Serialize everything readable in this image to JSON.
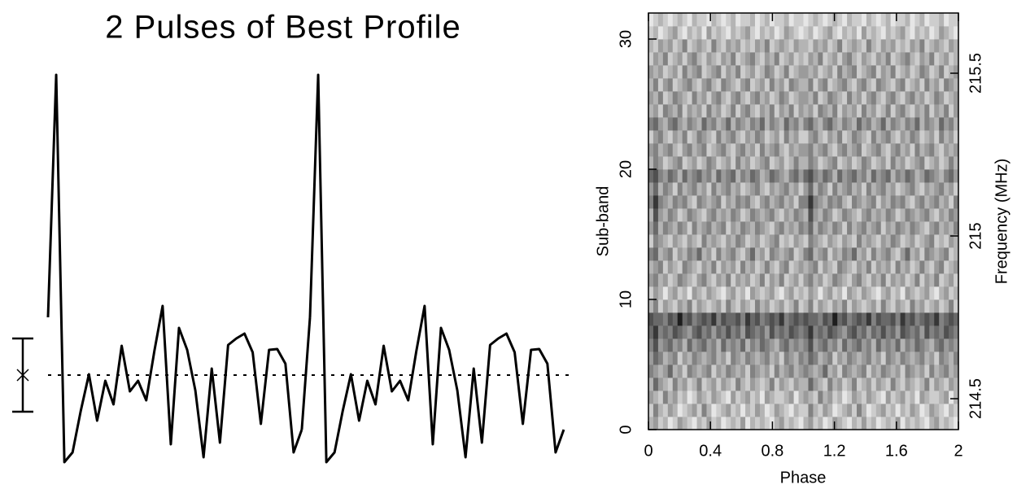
{
  "chart_data": [
    {
      "type": "line",
      "title": "2 Pulses of Best Profile",
      "color": "#000000",
      "values": [
        7.1,
        36.9,
        -10.7,
        -9.5,
        -4.4,
        0.1,
        -5.6,
        -0.7,
        -3.6,
        3.6,
        -2.0,
        -0.7,
        -3.1,
        3.0,
        8.5,
        -8.5,
        5.8,
        3.1,
        -1.9,
        -10.1,
        0.8,
        -8.3,
        3.7,
        4.5,
        5.1,
        2.8,
        -6.0,
        3.1,
        3.2,
        1.4,
        -9.5,
        -6.7
      ],
      "mean": 0,
      "error": 4.5,
      "xlim": [
        0,
        2
      ],
      "ylim": [
        -12,
        40
      ]
    },
    {
      "type": "heatmap",
      "xlabel": "Phase",
      "ylabel": "Sub-band",
      "y2label": "Frequency (MHz)",
      "xlim": [
        0,
        2
      ],
      "xticks": [
        0,
        0.4,
        0.8,
        1.2,
        1.6,
        2
      ],
      "ylim": [
        0,
        32
      ],
      "yticks": [
        0,
        10,
        20,
        30
      ],
      "y2lim": [
        214.405,
        215.685
      ],
      "y2ticks": [
        214.5,
        215,
        215.5
      ],
      "z": [
        [
          3,
          4,
          2,
          3,
          1,
          2,
          4,
          3,
          2,
          1,
          3,
          2,
          4,
          2,
          3,
          1,
          2,
          3,
          2,
          4,
          1,
          3,
          2,
          3,
          2,
          1,
          3,
          4,
          2,
          3,
          2,
          1
        ],
        [
          2,
          5,
          3,
          2,
          4,
          3,
          1,
          2,
          3,
          4,
          2,
          5,
          3,
          1,
          2,
          3,
          4,
          2,
          3,
          1,
          3,
          2,
          4,
          3,
          1,
          2,
          4,
          3,
          2,
          1,
          3,
          2
        ],
        [
          4,
          3,
          2,
          5,
          3,
          4,
          2,
          3,
          1,
          2,
          4,
          3,
          2,
          4,
          3,
          2,
          1,
          4,
          2,
          3,
          4,
          2,
          3,
          1,
          4,
          3,
          2,
          2,
          3,
          4,
          1,
          3
        ],
        [
          3,
          6,
          4,
          3,
          2,
          5,
          3,
          4,
          2,
          3,
          5,
          2,
          3,
          4,
          2,
          4,
          3,
          2,
          5,
          3,
          2,
          4,
          3,
          2,
          3,
          5,
          2,
          4,
          3,
          2,
          4,
          3
        ],
        [
          5,
          4,
          3,
          4,
          6,
          3,
          4,
          2,
          5,
          4,
          3,
          4,
          5,
          2,
          4,
          3,
          5,
          4,
          3,
          4,
          2,
          5,
          4,
          3,
          4,
          2,
          5,
          3,
          4,
          5,
          3,
          4
        ],
        [
          4,
          6,
          5,
          3,
          4,
          5,
          2,
          4,
          3,
          5,
          4,
          3,
          4,
          5,
          3,
          4,
          2,
          5,
          4,
          3,
          5,
          4,
          3,
          4,
          5,
          3,
          4,
          2,
          5,
          4,
          3,
          5
        ],
        [
          5,
          7,
          4,
          5,
          6,
          4,
          5,
          3,
          6,
          4,
          5,
          6,
          4,
          5,
          3,
          6,
          4,
          5,
          4,
          6,
          3,
          5,
          4,
          6,
          5,
          4,
          3,
          5,
          6,
          4,
          5,
          4
        ],
        [
          6,
          8,
          5,
          6,
          5,
          7,
          6,
          5,
          4,
          6,
          7,
          5,
          6,
          4,
          6,
          5,
          7,
          5,
          6,
          4,
          7,
          6,
          5,
          6,
          4,
          7,
          5,
          6,
          5,
          7,
          6,
          5
        ],
        [
          7,
          6,
          6,
          5,
          7,
          6,
          9,
          6,
          7,
          5,
          6,
          7,
          6,
          8,
          5,
          7,
          6,
          6,
          7,
          5,
          8,
          6,
          7,
          5,
          6,
          7,
          6,
          8,
          5,
          6,
          7,
          6
        ],
        [
          3,
          5,
          2,
          4,
          3,
          2,
          4,
          3,
          5,
          2,
          4,
          3,
          2,
          3,
          4,
          2,
          5,
          3,
          2,
          4,
          3,
          2,
          5,
          3,
          4,
          2,
          3,
          4,
          2,
          3,
          5,
          2
        ],
        [
          2,
          4,
          3,
          1,
          3,
          4,
          2,
          3,
          1,
          4,
          3,
          2,
          4,
          3,
          2,
          1,
          3,
          4,
          2,
          3,
          1,
          4,
          3,
          2,
          3,
          4,
          2,
          1,
          3,
          4,
          2,
          3
        ],
        [
          4,
          5,
          3,
          4,
          2,
          3,
          5,
          4,
          3,
          2,
          4,
          5,
          3,
          2,
          4,
          3,
          5,
          2,
          4,
          3,
          4,
          2,
          3,
          5,
          2,
          4,
          3,
          5,
          2,
          3,
          4,
          2
        ],
        [
          3,
          4,
          5,
          2,
          4,
          3,
          2,
          5,
          4,
          3,
          2,
          4,
          3,
          5,
          2,
          4,
          3,
          4,
          2,
          5,
          3,
          4,
          2,
          3,
          5,
          3,
          2,
          4,
          5,
          2,
          3,
          4
        ],
        [
          5,
          6,
          3,
          4,
          5,
          2,
          4,
          3,
          5,
          4,
          6,
          3,
          4,
          2,
          5,
          3,
          4,
          5,
          3,
          2,
          4,
          6,
          3,
          4,
          2,
          5,
          4,
          3,
          4,
          5,
          2,
          3
        ],
        [
          2,
          5,
          4,
          3,
          2,
          4,
          3,
          2,
          4,
          3,
          2,
          5,
          3,
          4,
          3,
          2,
          4,
          3,
          5,
          4,
          2,
          3,
          4,
          2,
          3,
          4,
          5,
          2,
          3,
          2,
          4,
          3
        ],
        [
          4,
          6,
          3,
          5,
          4,
          3,
          5,
          4,
          2,
          5,
          3,
          4,
          5,
          3,
          4,
          5,
          2,
          4,
          3,
          5,
          4,
          3,
          5,
          4,
          3,
          2,
          4,
          5,
          3,
          4,
          3,
          5
        ],
        [
          3,
          7,
          4,
          3,
          5,
          4,
          2,
          3,
          5,
          4,
          3,
          2,
          4,
          5,
          3,
          4,
          3,
          5,
          4,
          2,
          3,
          5,
          4,
          3,
          4,
          5,
          3,
          2,
          4,
          3,
          5,
          4
        ],
        [
          5,
          8,
          5,
          4,
          3,
          5,
          4,
          5,
          3,
          2,
          5,
          4,
          3,
          4,
          5,
          2,
          4,
          3,
          5,
          4,
          5,
          3,
          2,
          4,
          5,
          3,
          4,
          5,
          3,
          4,
          2,
          5
        ],
        [
          4,
          6,
          3,
          5,
          4,
          2,
          5,
          3,
          4,
          5,
          3,
          4,
          2,
          5,
          3,
          4,
          5,
          3,
          4,
          2,
          3,
          4,
          5,
          3,
          2,
          4,
          3,
          4,
          5,
          3,
          4,
          2
        ],
        [
          6,
          7,
          5,
          4,
          6,
          5,
          3,
          6,
          4,
          5,
          6,
          4,
          5,
          3,
          6,
          4,
          5,
          6,
          3,
          5,
          4,
          6,
          5,
          3,
          4,
          6,
          5,
          4,
          3,
          5,
          6,
          4
        ],
        [
          3,
          5,
          4,
          2,
          3,
          4,
          5,
          2,
          3,
          4,
          2,
          3,
          5,
          4,
          2,
          3,
          4,
          2,
          5,
          3,
          4,
          2,
          3,
          4,
          5,
          2,
          3,
          4,
          2,
          3,
          5,
          3
        ],
        [
          4,
          5,
          3,
          4,
          5,
          3,
          2,
          4,
          5,
          3,
          4,
          5,
          2,
          3,
          4,
          5,
          3,
          2,
          4,
          5,
          3,
          4,
          2,
          5,
          3,
          4,
          5,
          3,
          2,
          4,
          3,
          4
        ],
        [
          2,
          4,
          5,
          3,
          2,
          4,
          3,
          5,
          2,
          3,
          5,
          4,
          3,
          2,
          5,
          3,
          4,
          5,
          3,
          2,
          4,
          3,
          5,
          4,
          2,
          3,
          4,
          2,
          5,
          3,
          4,
          2
        ],
        [
          5,
          6,
          4,
          3,
          5,
          6,
          4,
          3,
          5,
          4,
          3,
          6,
          4,
          5,
          3,
          4,
          6,
          3,
          5,
          4,
          3,
          5,
          4,
          6,
          3,
          5,
          4,
          3,
          6,
          4,
          5,
          3
        ],
        [
          3,
          4,
          2,
          5,
          4,
          3,
          5,
          2,
          4,
          3,
          4,
          2,
          5,
          3,
          4,
          2,
          3,
          5,
          2,
          4,
          5,
          3,
          2,
          4,
          3,
          5,
          2,
          4,
          3,
          5,
          2,
          4
        ],
        [
          4,
          3,
          5,
          2,
          3,
          5,
          4,
          3,
          2,
          5,
          3,
          4,
          2,
          4,
          5,
          3,
          2,
          4,
          5,
          3,
          2,
          4,
          5,
          3,
          4,
          2,
          3,
          5,
          4,
          2,
          3,
          4
        ],
        [
          3,
          5,
          2,
          4,
          5,
          2,
          3,
          4,
          5,
          3,
          2,
          4,
          5,
          3,
          2,
          5,
          4,
          3,
          2,
          4,
          5,
          2,
          3,
          4,
          2,
          5,
          3,
          4,
          2,
          5,
          4,
          3
        ],
        [
          4,
          3,
          4,
          2,
          3,
          4,
          2,
          5,
          3,
          4,
          5,
          2,
          3,
          4,
          5,
          2,
          4,
          3,
          5,
          2,
          3,
          4,
          2,
          3,
          5,
          4,
          2,
          3,
          5,
          2,
          3,
          4
        ],
        [
          2,
          4,
          3,
          5,
          2,
          3,
          4,
          2,
          4,
          5,
          3,
          2,
          4,
          3,
          2,
          4,
          3,
          5,
          2,
          3,
          4,
          5,
          3,
          2,
          4,
          3,
          5,
          2,
          3,
          4,
          2,
          3
        ],
        [
          3,
          2,
          4,
          3,
          4,
          2,
          3,
          5,
          2,
          3,
          4,
          3,
          2,
          5,
          3,
          2,
          4,
          3,
          4,
          2,
          3,
          2,
          4,
          3,
          5,
          2,
          3,
          4,
          3,
          2,
          4,
          3
        ],
        [
          2,
          3,
          1,
          2,
          3,
          4,
          2,
          1,
          3,
          2,
          3,
          1,
          4,
          2,
          3,
          2,
          1,
          3,
          2,
          3,
          4,
          2,
          1,
          3,
          2,
          3,
          1,
          2,
          4,
          3,
          2,
          1
        ],
        [
          1,
          2,
          3,
          2,
          1,
          2,
          3,
          2,
          1,
          3,
          2,
          2,
          1,
          3,
          2,
          1,
          2,
          3,
          1,
          2,
          2,
          3,
          1,
          2,
          3,
          1,
          2,
          2,
          3,
          1,
          2,
          2
        ]
      ]
    }
  ]
}
